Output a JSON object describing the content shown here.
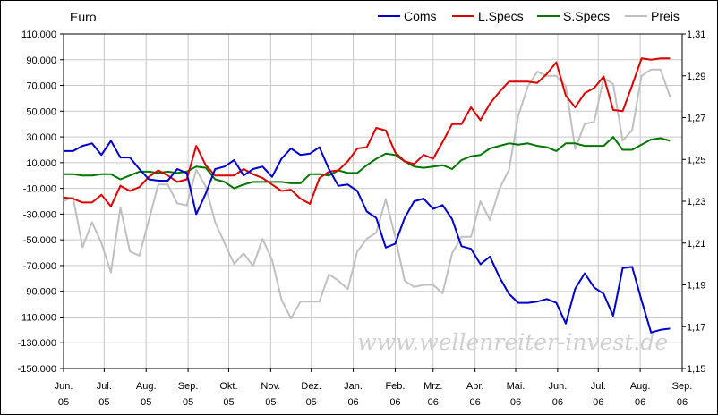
{
  "chart_data": {
    "type": "line",
    "currency_label": "Euro",
    "watermark": "www.wellenreiter-invest.de",
    "grid": true,
    "legend_position": "top-right",
    "x": [
      "2005-06-01",
      "2005-06-08",
      "2005-06-15",
      "2005-06-22",
      "2005-06-29",
      "2005-07-06",
      "2005-07-13",
      "2005-07-20",
      "2005-07-27",
      "2005-08-03",
      "2005-08-10",
      "2005-08-17",
      "2005-08-24",
      "2005-08-31",
      "2005-09-07",
      "2005-09-14",
      "2005-09-21",
      "2005-09-28",
      "2005-10-05",
      "2005-10-12",
      "2005-10-19",
      "2005-10-26",
      "2005-11-02",
      "2005-11-09",
      "2005-11-16",
      "2005-11-23",
      "2005-11-30",
      "2005-12-07",
      "2005-12-14",
      "2005-12-21",
      "2005-12-28",
      "2006-01-04",
      "2006-01-11",
      "2006-01-18",
      "2006-01-25",
      "2006-02-01",
      "2006-02-08",
      "2006-02-15",
      "2006-02-22",
      "2006-03-01",
      "2006-03-08",
      "2006-03-15",
      "2006-03-22",
      "2006-03-29",
      "2006-04-05",
      "2006-04-12",
      "2006-04-19",
      "2006-04-26",
      "2006-05-03",
      "2006-05-10",
      "2006-05-17",
      "2006-05-24",
      "2006-05-31",
      "2006-06-07",
      "2006-06-14",
      "2006-06-21",
      "2006-06-28",
      "2006-07-05",
      "2006-07-12",
      "2006-07-19",
      "2006-07-26",
      "2006-08-02",
      "2006-08-09",
      "2006-08-16",
      "2006-08-23"
    ],
    "x_ticks": [
      {
        "date": "2005-06-01",
        "line1": "Jun.",
        "line2": "05"
      },
      {
        "date": "2005-07-01",
        "line1": "Jul.",
        "line2": "05"
      },
      {
        "date": "2005-08-01",
        "line1": "Aug.",
        "line2": "05"
      },
      {
        "date": "2005-09-01",
        "line1": "Sep.",
        "line2": "05"
      },
      {
        "date": "2005-10-01",
        "line1": "Okt.",
        "line2": "05"
      },
      {
        "date": "2005-11-01",
        "line1": "Nov.",
        "line2": "05"
      },
      {
        "date": "2005-12-01",
        "line1": "Dez.",
        "line2": "05"
      },
      {
        "date": "2006-01-01",
        "line1": "Jan.",
        "line2": "06"
      },
      {
        "date": "2006-02-01",
        "line1": "Feb.",
        "line2": "06"
      },
      {
        "date": "2006-03-01",
        "line1": "Mrz.",
        "line2": "06"
      },
      {
        "date": "2006-04-01",
        "line1": "Apr.",
        "line2": "06"
      },
      {
        "date": "2006-05-01",
        "line1": "Mai.",
        "line2": "06"
      },
      {
        "date": "2006-06-01",
        "line1": "Jun.",
        "line2": "06"
      },
      {
        "date": "2006-07-01",
        "line1": "Jul.",
        "line2": "06"
      },
      {
        "date": "2006-08-01",
        "line1": "Aug.",
        "line2": "06"
      },
      {
        "date": "2006-09-01",
        "line1": "Sep.",
        "line2": "06"
      }
    ],
    "x_range": [
      "2005-06-01",
      "2006-09-01"
    ],
    "ylim_left": [
      -150000,
      110000
    ],
    "yticks_left": [
      110000,
      90000,
      70000,
      50000,
      30000,
      10000,
      -10000,
      -30000,
      -50000,
      -70000,
      -90000,
      -110000,
      -130000,
      -150000
    ],
    "yticks_left_labels": [
      "110.000",
      "90.000",
      "70.000",
      "50.000",
      "30.000",
      "10.000",
      "-10.000",
      "-30.000",
      "-50.000",
      "-70.000",
      "-90.000",
      "-110.000",
      "-130.000",
      "-150.000"
    ],
    "ylim_right": [
      1.15,
      1.31
    ],
    "yticks_right": [
      1.31,
      1.29,
      1.27,
      1.25,
      1.23,
      1.21,
      1.19,
      1.17,
      1.15
    ],
    "yticks_right_labels": [
      "1,31",
      "1,29",
      "1,27",
      "1,25",
      "1,23",
      "1,21",
      "1,19",
      "1,17",
      "1,15"
    ],
    "series": [
      {
        "name": "Coms",
        "axis": "left",
        "color": "#0000cc",
        "values": [
          19000,
          19000,
          23000,
          25000,
          16000,
          27000,
          14000,
          14000,
          5000,
          -3000,
          -4000,
          -4000,
          5000,
          2000,
          -30000,
          -14000,
          5000,
          7000,
          12000,
          0,
          5000,
          7000,
          -1000,
          13000,
          21000,
          16000,
          17000,
          22000,
          5000,
          -8000,
          -7000,
          -12000,
          -28000,
          -33000,
          -56000,
          -53000,
          -33000,
          -20000,
          -18000,
          -26000,
          -23000,
          -34000,
          -55000,
          -57000,
          -69000,
          -63000,
          -79000,
          -92000,
          -99000,
          -99000,
          -98000,
          -96000,
          -99000,
          -115000,
          -88000,
          -76000,
          -87000,
          -92000,
          -109000,
          -72000,
          -71000,
          -97000,
          -122000,
          -120000,
          -119000
        ]
      },
      {
        "name": "L.Specs",
        "axis": "left",
        "color": "#dd0000",
        "values": [
          -17000,
          -18000,
          -21000,
          -21000,
          -15000,
          -24000,
          -8000,
          -12000,
          -9000,
          -1000,
          4000,
          0,
          -5000,
          -3000,
          23000,
          8000,
          0,
          0,
          0,
          5000,
          1000,
          -2000,
          -7000,
          -12000,
          -11000,
          -18000,
          -22000,
          -2000,
          3000,
          4000,
          11000,
          21000,
          22000,
          37000,
          35000,
          18000,
          11000,
          9000,
          16000,
          13000,
          26000,
          40000,
          40000,
          53000,
          43000,
          56000,
          65000,
          73000,
          73000,
          73000,
          72000,
          79000,
          88000,
          62000,
          53000,
          64000,
          68000,
          77000,
          51000,
          50000,
          70000,
          91000,
          90000,
          91000,
          91000
        ]
      },
      {
        "name": "S.Specs",
        "axis": "left",
        "color": "#007700",
        "values": [
          1000,
          1000,
          0,
          0,
          1000,
          1000,
          -3000,
          0,
          3000,
          3000,
          2000,
          3000,
          2000,
          3000,
          7000,
          6000,
          -3000,
          -5000,
          -10000,
          -7000,
          -5000,
          -5000,
          -5000,
          -5000,
          -6000,
          -6000,
          1000,
          1000,
          0,
          4000,
          2000,
          2000,
          8000,
          13000,
          17000,
          16000,
          11000,
          7000,
          6000,
          7000,
          8000,
          5000,
          12000,
          15000,
          16000,
          21000,
          23000,
          25000,
          24000,
          25000,
          23000,
          22000,
          19000,
          25000,
          25000,
          23000,
          23000,
          23000,
          30000,
          20000,
          20000,
          24000,
          28000,
          29000,
          27000
        ]
      },
      {
        "name": "Preis",
        "axis": "right",
        "color": "#c0c0c0",
        "values": [
          1.23,
          1.232,
          1.208,
          1.22,
          1.21,
          1.196,
          1.227,
          1.206,
          1.204,
          1.221,
          1.238,
          1.238,
          1.229,
          1.228,
          1.245,
          1.237,
          1.22,
          1.21,
          1.2,
          1.205,
          1.199,
          1.212,
          1.202,
          1.183,
          1.174,
          1.182,
          1.182,
          1.182,
          1.195,
          1.192,
          1.188,
          1.206,
          1.212,
          1.215,
          1.231,
          1.213,
          1.192,
          1.189,
          1.19,
          1.19,
          1.186,
          1.205,
          1.213,
          1.213,
          1.23,
          1.221,
          1.236,
          1.245,
          1.271,
          1.285,
          1.292,
          1.29,
          1.29,
          1.285,
          1.255,
          1.267,
          1.268,
          1.289,
          1.286,
          1.259,
          1.264,
          1.29,
          1.293,
          1.293,
          1.28
        ]
      }
    ]
  }
}
